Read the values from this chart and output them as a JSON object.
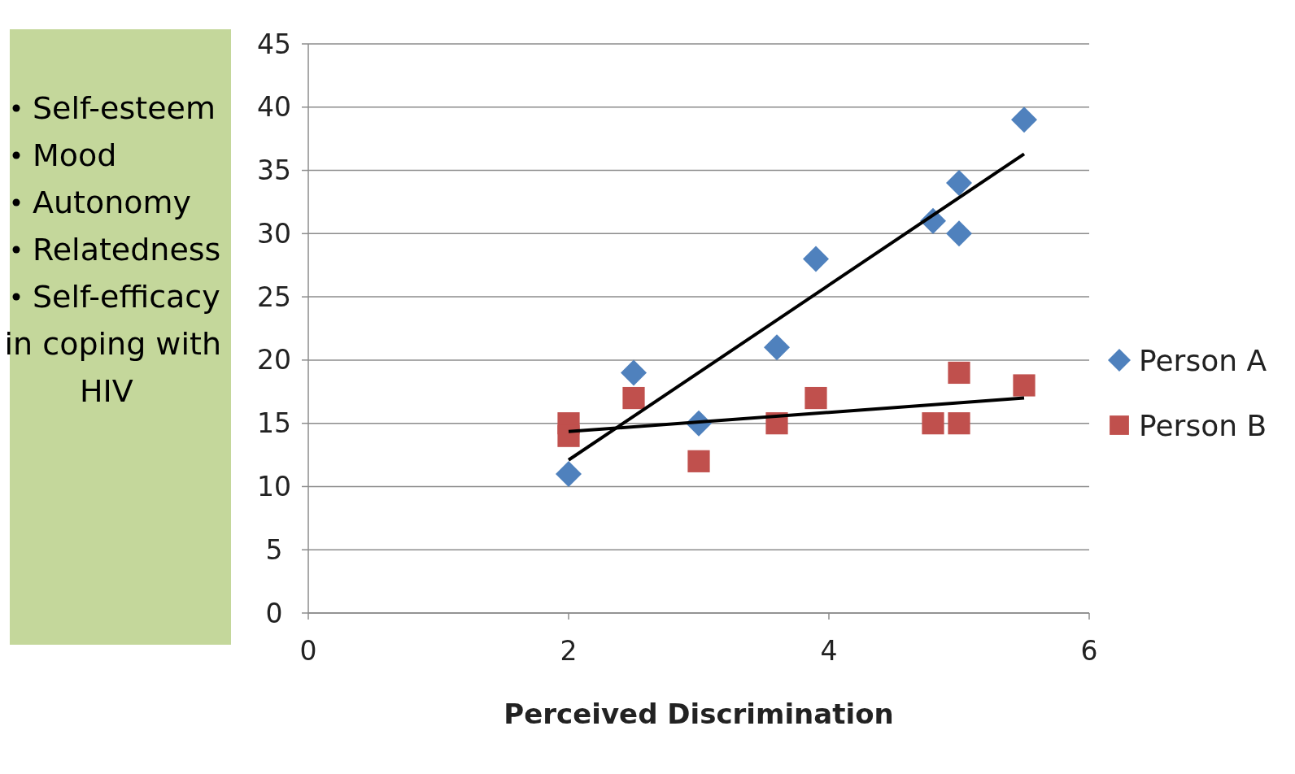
{
  "chart_data": {
    "type": "scatter",
    "xlabel": "Perceived Discrimination",
    "annotations": [
      "Self-esteem",
      "Mood",
      "Autonomy",
      "Relatedness",
      "Self-efficacy in coping with HIV"
    ],
    "xlim": [
      0,
      6
    ],
    "xticks": [
      0,
      2,
      4,
      6
    ],
    "ylim": [
      0,
      45
    ],
    "yticks": [
      0,
      5,
      10,
      15,
      20,
      25,
      30,
      35,
      40,
      45
    ],
    "grid": "y",
    "legend": "right",
    "series": [
      {
        "name": "Person A",
        "color": "#4f81bd",
        "marker": "diamond",
        "x": [
          2,
          2.5,
          3,
          3.6,
          3.9,
          4.8,
          5,
          5,
          5.5
        ],
        "values": [
          11,
          19,
          15,
          21,
          28,
          31,
          34,
          30,
          39
        ]
      },
      {
        "name": "Person B",
        "color": "#c0504d",
        "marker": "square",
        "x": [
          2,
          2,
          2.5,
          3,
          3.6,
          3.9,
          4.8,
          5,
          5,
          5.5
        ],
        "values": [
          15,
          14,
          17,
          12,
          15,
          17,
          15,
          15,
          19,
          18
        ]
      },
      {
        "type": "line",
        "color": "#000000",
        "marker": "none",
        "x": [
          2,
          5.5
        ],
        "values": [
          12.1,
          36.3
        ]
      },
      {
        "type": "line",
        "color": "#000000",
        "marker": "none",
        "x": [
          2,
          5.5
        ],
        "values": [
          14.35,
          17.0
        ]
      }
    ]
  }
}
